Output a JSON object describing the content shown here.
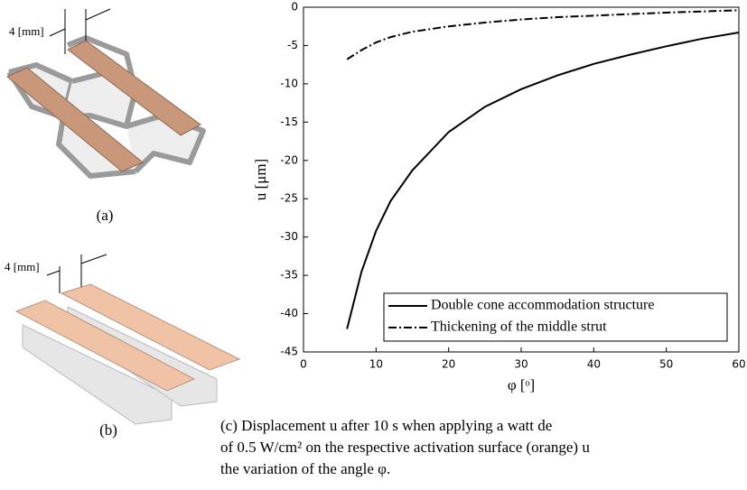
{
  "figure": {
    "panel_a": {
      "dimension": "4 [mm]",
      "label": "(a)"
    },
    "panel_b": {
      "dimension": "4 [mm]",
      "label": "(b)"
    },
    "caption": [
      "(c) Displacement u after 10 s when applying a watt de",
      "of 0.5 W/cm² on the respective activation surface (orange) u",
      "the variation of the angle φ."
    ]
  },
  "chart_data": {
    "type": "line",
    "x_label": "φ [ᵒ]",
    "y_label": "u [μm]",
    "x": [
      6,
      8,
      10,
      12,
      15,
      20,
      25,
      30,
      35,
      40,
      45,
      50,
      55,
      60
    ],
    "series": [
      {
        "name": "Double cone accommodation structure",
        "color": "#000000",
        "dash": "solid",
        "values": [
          -42,
          -34.5,
          -29.2,
          -25.3,
          -21.3,
          -16.3,
          -13,
          -10.7,
          -8.9,
          -7.4,
          -6.2,
          -5.1,
          -4.1,
          -3.3
        ]
      },
      {
        "name": "Thickening of the middle strut",
        "color": "#000000",
        "dash": "dashdot",
        "values": [
          -6.8,
          -5.6,
          -4.6,
          -3.9,
          -3.2,
          -2.5,
          -2.0,
          -1.6,
          -1.3,
          -1.1,
          -0.9,
          -0.7,
          -0.55,
          -0.4
        ]
      }
    ],
    "xlim": [
      0,
      60
    ],
    "xticks": [
      0,
      10,
      20,
      30,
      40,
      50,
      60
    ],
    "ylim": [
      -45,
      0
    ],
    "yticks": [
      0,
      -5,
      -10,
      -15,
      -20,
      -25,
      -30,
      -35,
      -40,
      -45
    ],
    "legend": "lower right"
  }
}
